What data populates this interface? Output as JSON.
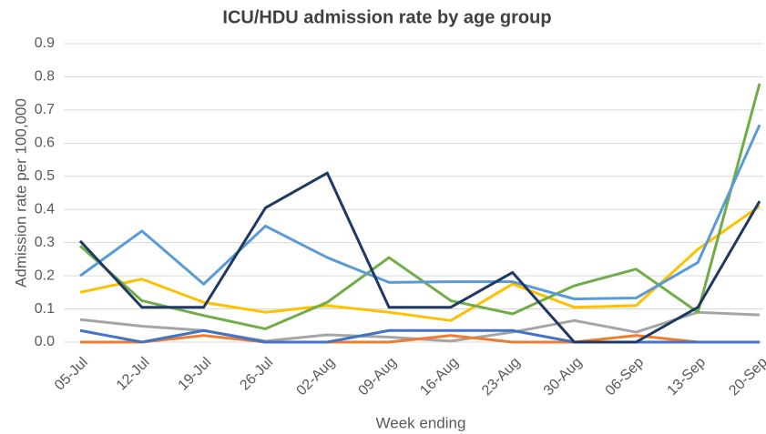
{
  "chart_data": {
    "type": "line",
    "title": "ICU/HDU  admission rate by age group",
    "x_label": "Week ending",
    "y_label": "Admission rate per 100,000",
    "categories": [
      "05-Jul",
      "12-Jul",
      "19-Jul",
      "26-Jul",
      "02-Aug",
      "09-Aug",
      "16-Aug",
      "23-Aug",
      "30-Aug",
      "06-Sep",
      "13-Sep",
      "20-Sep"
    ],
    "series": [
      {
        "color": "#a5a5a5",
        "values": [
          0.068,
          0.048,
          0.035,
          0.003,
          0.022,
          0.015,
          0.003,
          0.03,
          0.065,
          0.03,
          0.09,
          0.082
        ]
      },
      {
        "color": "#ed7d31",
        "values": [
          0.0,
          0.0,
          0.02,
          0.0,
          0.0,
          0.0,
          0.02,
          0.0,
          0.0,
          0.02,
          0.0,
          0.0
        ]
      },
      {
        "color": "#4472c4",
        "values": [
          0.035,
          0.0,
          0.035,
          0.0,
          0.0,
          0.035,
          0.035,
          0.035,
          0.0,
          0.0,
          0.0,
          0.0
        ]
      },
      {
        "color": "#ffc000",
        "values": [
          0.15,
          0.19,
          0.12,
          0.09,
          0.11,
          0.09,
          0.065,
          0.175,
          0.105,
          0.11,
          0.28,
          0.41
        ]
      },
      {
        "color": "#70ad47",
        "values": [
          0.29,
          0.125,
          0.08,
          0.04,
          0.12,
          0.255,
          0.125,
          0.085,
          0.17,
          0.22,
          0.09,
          0.78
        ]
      },
      {
        "color": "#5b9bd5",
        "values": [
          0.2,
          0.335,
          0.175,
          0.35,
          0.255,
          0.18,
          0.182,
          0.182,
          0.13,
          0.133,
          0.24,
          0.655
        ]
      },
      {
        "color": "#203864",
        "values": [
          0.305,
          0.105,
          0.105,
          0.405,
          0.51,
          0.105,
          0.105,
          0.21,
          0.0,
          0.0,
          0.105,
          0.425
        ]
      }
    ],
    "ylim": [
      0,
      0.9
    ],
    "yticks": [
      {
        "value": 0,
        "label": "0.0"
      },
      0.1,
      0.2,
      0.3,
      0.4,
      0.5,
      0.6,
      0.7,
      0.8,
      0.9
    ],
    "grid": true
  }
}
